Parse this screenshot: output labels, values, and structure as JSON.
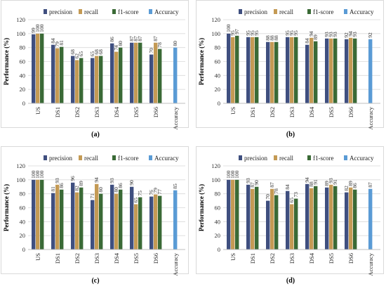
{
  "chart_data": [
    {
      "type": "bar",
      "panel_label": "(a)",
      "ylabel": "Performance (%)",
      "ylim": [
        0,
        120
      ],
      "yticks": [
        0,
        20,
        40,
        60,
        80,
        100,
        120
      ],
      "grid": true,
      "legend": "top",
      "categories": [
        "US",
        "DS1",
        "DS2",
        "DS3",
        "DS4",
        "DS5",
        "DS6",
        "Accuracy"
      ],
      "series": [
        {
          "name": "precision",
          "color": "#3f4f7f",
          "values": [
            99,
            84,
            68,
            65,
            86,
            87,
            70,
            null
          ]
        },
        {
          "name": "recall",
          "color": "#c49a54",
          "values": [
            100,
            79,
            62,
            68,
            74,
            87,
            87,
            null
          ]
        },
        {
          "name": "f1-score",
          "color": "#3a6a36",
          "values": [
            100,
            81,
            65,
            68,
            80,
            87,
            78,
            null
          ]
        },
        {
          "name": "Accuracy",
          "color": "#5a9bd5",
          "values": [
            null,
            null,
            null,
            null,
            null,
            null,
            null,
            80
          ]
        }
      ]
    },
    {
      "type": "bar",
      "panel_label": "(b)",
      "ylabel": "Performance (%)",
      "ylim": [
        0,
        120
      ],
      "yticks": [
        0,
        20,
        40,
        60,
        80,
        100,
        120
      ],
      "grid": true,
      "legend": "top",
      "categories": [
        "US",
        "DS1",
        "DS2",
        "DS3",
        "DS4",
        "DS5",
        "DS6",
        "Accuracy"
      ],
      "series": [
        {
          "name": "precision",
          "color": "#3f4f7f",
          "values": [
            100,
            95,
            88,
            95,
            84,
            93,
            92,
            null
          ]
        },
        {
          "name": "recall",
          "color": "#c49a54",
          "values": [
            95,
            95,
            88,
            95,
            94,
            93,
            94,
            null
          ]
        },
        {
          "name": "f1-score",
          "color": "#3a6a36",
          "values": [
            97,
            95,
            88,
            95,
            89,
            93,
            93,
            null
          ]
        },
        {
          "name": "Accuracy",
          "color": "#5a9bd5",
          "values": [
            null,
            null,
            null,
            null,
            null,
            null,
            null,
            92
          ]
        }
      ]
    },
    {
      "type": "bar",
      "panel_label": "(c)",
      "ylabel": "Performance (%)",
      "ylim": [
        0,
        120
      ],
      "yticks": [
        0,
        20,
        40,
        60,
        80,
        100,
        120
      ],
      "grid": true,
      "legend": "top",
      "categories": [
        "US",
        "DS1",
        "DS2",
        "DS3",
        "DS4",
        "DS5",
        "DS6",
        "Accuracy"
      ],
      "series": [
        {
          "name": "precision",
          "color": "#3f4f7f",
          "values": [
            100,
            81,
            96,
            71,
            93,
            90,
            76,
            null
          ]
        },
        {
          "name": "recall",
          "color": "#c49a54",
          "values": [
            100,
            93,
            82,
            94,
            80,
            65,
            79,
            null
          ]
        },
        {
          "name": "f1-score",
          "color": "#3a6a36",
          "values": [
            100,
            86,
            89,
            80,
            86,
            75,
            77,
            null
          ]
        },
        {
          "name": "Accuracy",
          "color": "#5a9bd5",
          "values": [
            null,
            null,
            null,
            null,
            null,
            null,
            null,
            85
          ]
        }
      ]
    },
    {
      "type": "bar",
      "panel_label": "(d)",
      "ylabel": "Performance (%)",
      "ylim": [
        0,
        120
      ],
      "yticks": [
        0,
        20,
        40,
        60,
        80,
        100,
        120
      ],
      "grid": true,
      "legend": "top",
      "categories": [
        "US",
        "DS1",
        "DS2",
        "DS3",
        "DS4",
        "DS5",
        "DS6",
        "Accuracy"
      ],
      "series": [
        {
          "name": "precision",
          "color": "#3f4f7f",
          "values": [
            100,
            93,
            70,
            84,
            94,
            89,
            82,
            null
          ]
        },
        {
          "name": "recall",
          "color": "#c49a54",
          "values": [
            100,
            87,
            87,
            65,
            88,
            93,
            89,
            null
          ]
        },
        {
          "name": "f1-score",
          "color": "#3a6a36",
          "values": [
            100,
            90,
            78,
            73,
            91,
            91,
            86,
            null
          ]
        },
        {
          "name": "Accuracy",
          "color": "#5a9bd5",
          "values": [
            null,
            null,
            null,
            null,
            null,
            null,
            null,
            87
          ]
        }
      ]
    }
  ]
}
